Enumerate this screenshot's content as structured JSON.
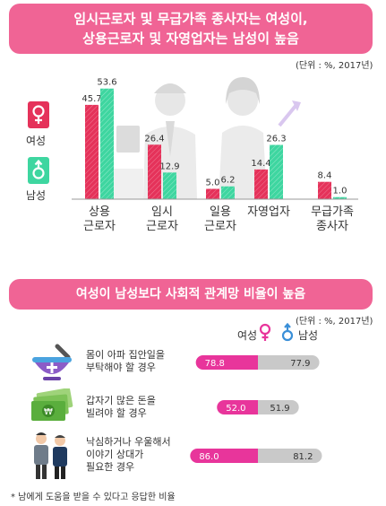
{
  "top": {
    "title_line1": "임시근로자 및 무급가족 종사자는 여성이,",
    "title_line2": "상용근로자 및 자영업자는 남성이 높음",
    "unit": "(단위 : %, 2017년)"
  },
  "legend": {
    "female": "여성",
    "male": "남성",
    "female_color": "#e5325a",
    "male_color": "#3ed6a0"
  },
  "chart_data": [
    {
      "type": "bar",
      "categories": [
        "상용\n근로자",
        "임시\n근로자",
        "일용\n근로자",
        "자영업자",
        "무급가족\n종사자"
      ],
      "series": [
        {
          "name": "여성",
          "values": [
            45.7,
            26.4,
            5.0,
            14.4,
            8.4
          ]
        },
        {
          "name": "남성",
          "values": [
            53.6,
            12.9,
            6.2,
            26.3,
            1.0
          ]
        }
      ],
      "ylim": [
        0,
        60
      ]
    },
    {
      "type": "bar",
      "orientation": "horizontal",
      "categories": [
        "몸이 아파 집안일을\n부탁해야 할 경우",
        "갑자기 많은 돈을\n빌려야 할 경우",
        "낙심하거나 우울해서\n이야기 상대가\n필요한 경우"
      ],
      "series": [
        {
          "name": "여성",
          "values": [
            78.8,
            52.0,
            86.0
          ]
        },
        {
          "name": "남성",
          "values": [
            77.9,
            51.9,
            81.2
          ]
        }
      ]
    }
  ],
  "bottom": {
    "title": "여성이 남성보다 사회적 관계망 비율이 높음",
    "unit": "(단위 : %, 2017년)",
    "female_head": "여성",
    "male_head": "남성",
    "female_color": "#e8359b",
    "male_color": "#c9c9c9",
    "footnote": "* 남에게 도움을 받을 수 있다고 응답한 비율"
  }
}
